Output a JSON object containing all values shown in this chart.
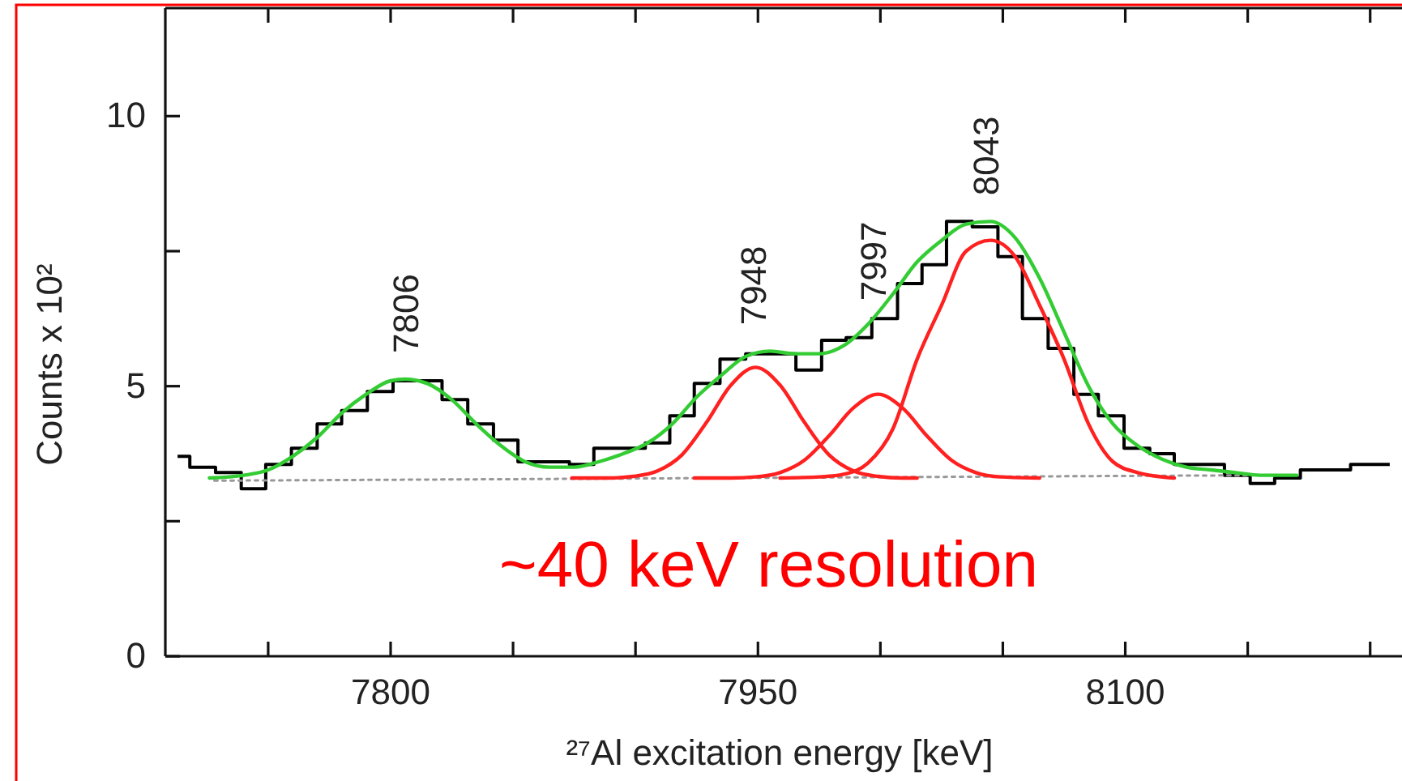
{
  "chart_data": {
    "type": "step",
    "xlabel": "²⁷Al excitation energy [keV]",
    "ylabel": "Counts x 10²",
    "xlim": [
      7708,
      8213
    ],
    "ylim": [
      0,
      12
    ],
    "xticks": [
      {
        "value": 7750,
        "label": null
      },
      7800,
      {
        "value": 7850,
        "label": null
      },
      {
        "value": 7900,
        "label": null
      },
      7950,
      {
        "value": 8000,
        "label": null
      },
      {
        "value": 8050,
        "label": null
      },
      8100,
      {
        "value": 8150,
        "label": null
      },
      {
        "value": 8200,
        "label": null
      }
    ],
    "yticks": [
      0,
      {
        "value": 2.5,
        "label": null
      },
      5,
      {
        "value": 7.5,
        "label": null
      },
      10
    ],
    "color": "#000000",
    "x": [
      7713,
      7723,
      7734,
      7744,
      7754,
      7765,
      7775,
      7785,
      7796,
      7806,
      7816,
      7826,
      7837,
      7847,
      7857,
      7868,
      7878,
      7888,
      7899,
      7909,
      7919,
      7929,
      7940,
      7950,
      7960,
      7971,
      7981,
      7991,
      8002,
      8012,
      8022,
      8032,
      8043,
      8053,
      8063,
      8074,
      8084,
      8094,
      8105,
      8115,
      8125,
      8135,
      8146,
      8156,
      8166,
      8177,
      8187,
      8197,
      8208
    ],
    "values": [
      3.7,
      3.5,
      3.4,
      3.1,
      3.55,
      3.85,
      4.3,
      4.55,
      4.9,
      5.1,
      5.1,
      4.75,
      4.3,
      4.0,
      3.6,
      3.6,
      3.55,
      3.85,
      3.85,
      3.95,
      4.45,
      5.05,
      5.5,
      5.6,
      5.6,
      5.3,
      5.85,
      5.9,
      6.25,
      6.9,
      7.25,
      8.05,
      7.95,
      7.4,
      6.25,
      5.7,
      4.85,
      4.45,
      3.85,
      3.75,
      3.55,
      3.55,
      3.35,
      3.2,
      3.3,
      3.45,
      3.45,
      3.55,
      3.55
    ],
    "series": [
      {
        "type": "line",
        "line_style": "dotted",
        "color": "#999999",
        "x": [
          7728,
          8150
        ],
        "values": [
          3.25,
          3.35
        ]
      },
      {
        "type": "line",
        "color": "#ff2020",
        "x": [
          7874,
          7889,
          7899,
          7909,
          7919,
          7929,
          7939,
          7949,
          7959,
          7969,
          7979,
          7989,
          7999,
          8009,
          8015
        ],
        "values": [
          3.3,
          3.3,
          3.33,
          3.43,
          3.73,
          4.33,
          5.02,
          5.35,
          5.02,
          4.33,
          3.73,
          3.43,
          3.33,
          3.3,
          3.3
        ]
      },
      {
        "type": "line",
        "color": "#ff2020",
        "x": [
          7924,
          7939,
          7949,
          7959,
          7969,
          7979,
          7989,
          7999,
          8009,
          8019,
          8029,
          8039,
          8049,
          8065
        ],
        "values": [
          3.3,
          3.3,
          3.32,
          3.4,
          3.63,
          4.08,
          4.6,
          4.85,
          4.6,
          4.08,
          3.63,
          3.4,
          3.32,
          3.3
        ]
      },
      {
        "type": "line",
        "color": "#ff2020",
        "x": [
          7959,
          7975,
          7985,
          7995,
          8005,
          8015,
          8025,
          8035,
          8045,
          8055,
          8065,
          8075,
          8085,
          8095,
          8105,
          8120
        ],
        "values": [
          3.3,
          3.32,
          3.37,
          3.58,
          4.2,
          5.5,
          6.5,
          7.5,
          7.7,
          7.4,
          6.5,
          5.5,
          4.3,
          3.6,
          3.4,
          3.3
        ]
      },
      {
        "type": "line",
        "color": "#33cc33",
        "x": [
          7726,
          7740,
          7750,
          7760,
          7770,
          7780,
          7790,
          7800,
          7806,
          7815,
          7825,
          7835,
          7845,
          7855,
          7865,
          7875,
          7885,
          7895,
          7905,
          7915,
          7925,
          7935,
          7945,
          7955,
          7965,
          7975,
          7985,
          7995,
          8005,
          8015,
          8025,
          8035,
          8045,
          8055,
          8065,
          8075,
          8085,
          8095,
          8105,
          8115,
          8125,
          8135,
          8145,
          8155,
          8170
        ],
        "values": [
          3.3,
          3.35,
          3.45,
          3.7,
          4.05,
          4.5,
          4.85,
          5.1,
          5.13,
          5.05,
          4.75,
          4.3,
          3.9,
          3.6,
          3.5,
          3.5,
          3.6,
          3.75,
          3.95,
          4.3,
          4.8,
          5.2,
          5.55,
          5.65,
          5.6,
          5.6,
          5.75,
          6.15,
          6.7,
          7.3,
          7.7,
          8.0,
          8.05,
          7.75,
          7.0,
          6.0,
          5.0,
          4.3,
          3.9,
          3.65,
          3.5,
          3.45,
          3.4,
          3.35,
          3.35
        ]
      }
    ],
    "annotations": [
      {
        "text": "7806",
        "x": 7806,
        "y": 5.13
      },
      {
        "text": "7948",
        "x": 7948,
        "y": 5.65
      },
      {
        "text": "7997",
        "x": 7997,
        "y": 6.1
      },
      {
        "text": "8043",
        "x": 8043,
        "y": 8.05
      },
      "~40 keV resolution"
    ]
  }
}
